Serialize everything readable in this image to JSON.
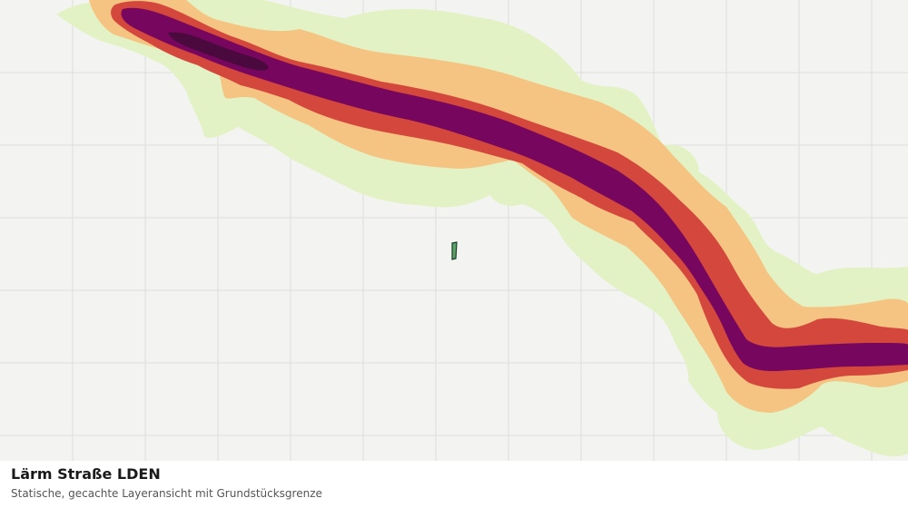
{
  "map": {
    "layer_title": "Lärm Straße LDEN",
    "layer_subtitle": "Statische, gecachte Layeransicht mit Grundstücksgrenze",
    "colors": {
      "background": "#f3f4f2",
      "grid": "#dcdedb",
      "noise_band_1": "#e2f2c4",
      "noise_band_2": "#f5c482",
      "noise_band_3": "#d4473c",
      "noise_band_4": "#76065e",
      "noise_band_5": "#4b0a3d",
      "parcel_fill": "#5ba36a",
      "parcel_outline": "#1a3d22"
    }
  }
}
